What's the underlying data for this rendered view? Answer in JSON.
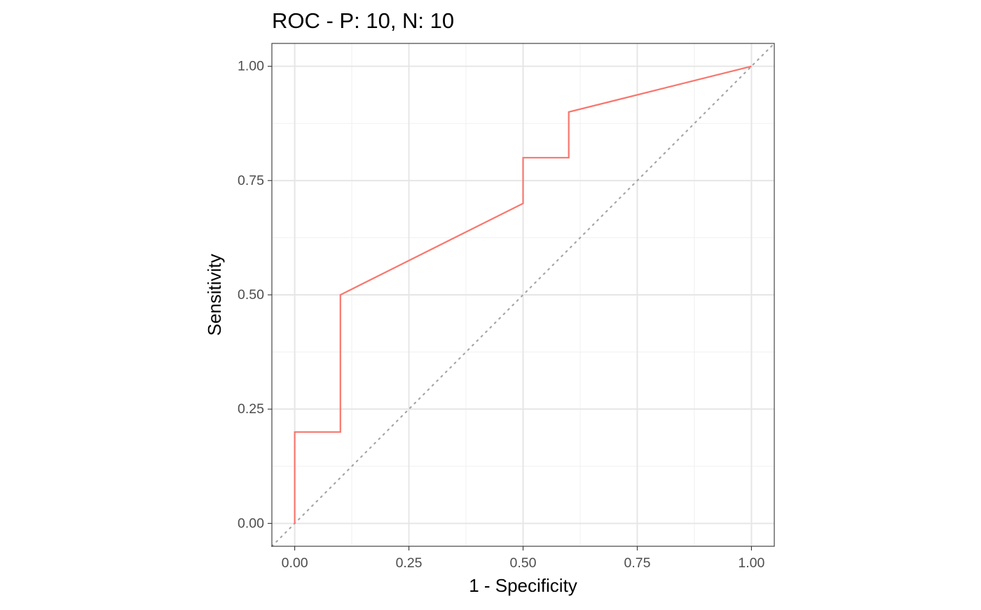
{
  "chart_data": {
    "type": "line",
    "title": "ROC - P: 10, N: 10",
    "xlabel": "1 - Specificity",
    "ylabel": "Sensitivity",
    "xlim": [
      -0.05,
      1.05
    ],
    "ylim": [
      -0.05,
      1.05
    ],
    "x_ticks": [
      0,
      0.25,
      0.5,
      0.75,
      1
    ],
    "x_tick_labels": [
      "0.00",
      "0.25",
      "0.50",
      "0.75",
      "1.00"
    ],
    "y_ticks": [
      0,
      0.25,
      0.5,
      0.75,
      1
    ],
    "y_tick_labels": [
      "0.00",
      "0.25",
      "0.50",
      "0.75",
      "1.00"
    ],
    "grid": true,
    "legend": "none",
    "series": [
      {
        "color": "#F8766D",
        "x": [
          0,
          0,
          0.1,
          0.1,
          0.5,
          0.5,
          0.6,
          0.6,
          1
        ],
        "y": [
          0,
          0.2,
          0.2,
          0.5,
          0.7,
          0.8,
          0.8,
          0.9,
          1
        ]
      }
    ],
    "reference_line": {
      "style": "dotted",
      "color": "#A6A6A6",
      "slope": 1,
      "intercept": 0
    }
  }
}
